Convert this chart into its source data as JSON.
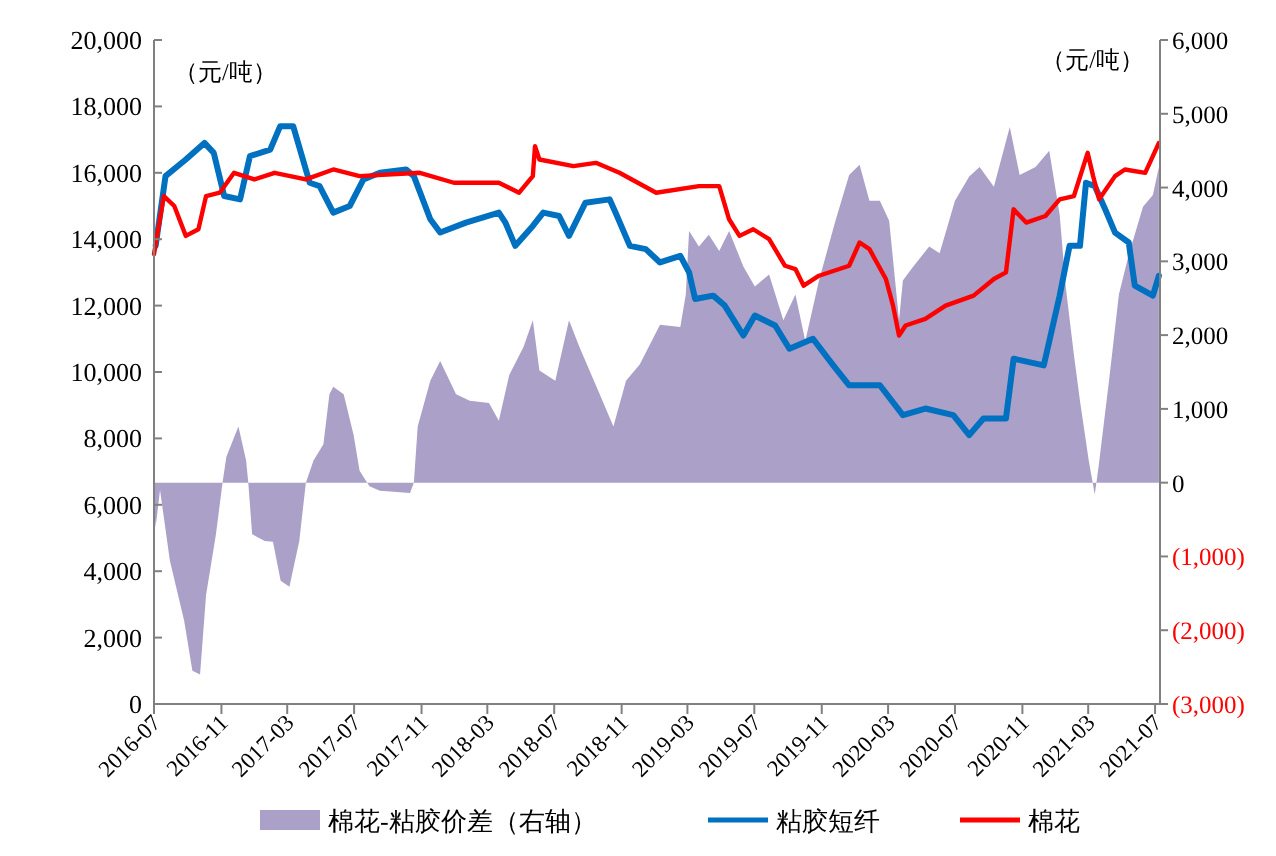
{
  "chart_data": {
    "type": "line",
    "ylabel": "（元/吨）",
    "y2label": "（元/吨）",
    "legend": "bottom",
    "xlim": [
      "2016-07-01",
      "2021-07-10"
    ],
    "xticks": [
      "2016-07",
      "2016-11",
      "2017-03",
      "2017-07",
      "2017-11",
      "2018-03",
      "2018-07",
      "2018-11",
      "2019-03",
      "2019-07",
      "2019-11",
      "2020-03",
      "2020-07",
      "2020-11",
      "2021-03",
      "2021-07"
    ],
    "ylim": [
      0,
      20000
    ],
    "yticks": [
      0,
      {
        "value": 2000,
        "label": "2,000"
      },
      {
        "value": 4000,
        "label": "4,000"
      },
      {
        "value": 6000,
        "label": "6,000"
      },
      {
        "value": 8000,
        "label": "8,000"
      },
      {
        "value": 10000,
        "label": "10,000"
      },
      {
        "value": 12000,
        "label": "12,000"
      },
      {
        "value": 14000,
        "label": "14,000"
      },
      {
        "value": 16000,
        "label": "16,000"
      },
      {
        "value": 18000,
        "label": "18,000"
      },
      {
        "value": 20000,
        "label": "20,000"
      }
    ],
    "y2lim": [
      -3000,
      6000
    ],
    "y2ticks": [
      {
        "value": -3000,
        "label": "(3,000)"
      },
      {
        "value": -2000,
        "label": "(2,000)"
      },
      {
        "value": -1000,
        "label": "(1,000)"
      },
      0,
      {
        "value": 1000,
        "label": "1,000"
      },
      {
        "value": 2000,
        "label": "2,000"
      },
      {
        "value": 3000,
        "label": "3,000"
      },
      {
        "value": 4000,
        "label": "4,000"
      },
      {
        "value": 5000,
        "label": "5,000"
      },
      {
        "value": 6000,
        "label": "6,000"
      }
    ],
    "series": [
      {
        "name": "棉花-粘胶价差（右轴）",
        "type": "area",
        "axis": "y2",
        "color": "#aaa0c8",
        "x": [
          "2016-07-01",
          "2016-07-04",
          "2016-07-12",
          "2016-07-30",
          "2016-08-25",
          "2016-09-09",
          "2016-09-23",
          "2016-10-04",
          "2016-10-22",
          "2016-11-03",
          "2016-11-10",
          "2016-12-02",
          "2016-12-16",
          "2016-12-20",
          "2016-12-27",
          "2017-01-19",
          "2017-02-03",
          "2017-02-17",
          "2017-03-05",
          "2017-03-23",
          "2017-04-04",
          "2017-04-18",
          "2017-05-06",
          "2017-05-17",
          "2017-05-24",
          "2017-06-12",
          "2017-06-30",
          "2017-07-11",
          "2017-07-29",
          "2017-08-17",
          "2017-09-23",
          "2017-10-11",
          "2017-10-18",
          "2017-10-25",
          "2017-11-17",
          "2017-12-05",
          "2018-01-03",
          "2018-01-28",
          "2018-03-04",
          "2018-03-22",
          "2018-04-10",
          "2018-05-06",
          "2018-05-23",
          "2018-06-04",
          "2018-07-03",
          "2018-07-28",
          "2018-08-16",
          "2018-09-22",
          "2018-10-17",
          "2018-11-09",
          "2018-12-04",
          "2019-01-10",
          "2019-02-16",
          "2019-02-26",
          "2019-03-04",
          "2019-03-22",
          "2019-04-09",
          "2019-04-28",
          "2019-05-16",
          "2019-06-11",
          "2019-07-02",
          "2019-07-28",
          "2019-08-23",
          "2019-09-14",
          "2019-10-02",
          "2019-10-27",
          "2019-11-26",
          "2019-12-21",
          "2020-01-09",
          "2020-01-27",
          "2020-02-15",
          "2020-03-03",
          "2020-03-21",
          "2020-03-28",
          "2020-04-16",
          "2020-05-15",
          "2020-06-03",
          "2020-07-01",
          "2020-07-27",
          "2020-08-15",
          "2020-09-10",
          "2020-10-09",
          "2020-10-27",
          "2020-11-25",
          "2020-12-20",
          "2021-01-08",
          "2021-01-19",
          "2021-02-03",
          "2021-02-14",
          "2021-03-02",
          "2021-03-13",
          "2021-03-20",
          "2021-04-08",
          "2021-04-26",
          "2021-05-14",
          "2021-06-09",
          "2021-06-27",
          "2021-07-08"
        ],
        "values": [
          -300,
          -600,
          -100,
          -1060,
          -1870,
          -2550,
          -2600,
          -1520,
          -700,
          0,
          350,
          760,
          300,
          0,
          -700,
          -790,
          -800,
          -1330,
          -1410,
          -790,
          0,
          300,
          520,
          1200,
          1300,
          1200,
          650,
          160,
          -50,
          -110,
          -130,
          -140,
          0,
          760,
          1380,
          1650,
          1200,
          1110,
          1080,
          840,
          1460,
          1840,
          2200,
          1520,
          1380,
          2200,
          1840,
          1200,
          760,
          1380,
          1600,
          2140,
          2110,
          2550,
          3410,
          3200,
          3360,
          3140,
          3410,
          2930,
          2660,
          2820,
          2200,
          2550,
          1920,
          2740,
          3550,
          4170,
          4310,
          3820,
          3820,
          3550,
          2200,
          2740,
          2930,
          3200,
          3110,
          3820,
          4150,
          4280,
          4010,
          4820,
          4170,
          4280,
          4500,
          3630,
          2660,
          1730,
          1110,
          300,
          -160,
          220,
          1380,
          2550,
          3090,
          3740,
          3900,
          4280
        ]
      },
      {
        "name": "粘胶短纤",
        "type": "line",
        "color": "#0070c0",
        "x": [
          "2016-07-04",
          "2016-07-22",
          "2016-08-28",
          "2016-10-01",
          "2016-10-18",
          "2016-11-06",
          "2016-12-05",
          "2016-12-23",
          "2017-01-29",
          "2017-02-16",
          "2017-03-12",
          "2017-04-11",
          "2017-04-29",
          "2017-05-24",
          "2017-06-23",
          "2017-07-18",
          "2017-08-17",
          "2017-10-04",
          "2017-10-18",
          "2017-11-17",
          "2017-12-05",
          "2018-01-21",
          "2018-03-22",
          "2018-04-03",
          "2018-04-21",
          "2018-05-23",
          "2018-06-11",
          "2018-07-10",
          "2018-07-28",
          "2018-08-27",
          "2018-10-10",
          "2018-10-21",
          "2018-11-16",
          "2018-12-15",
          "2019-01-10",
          "2019-02-16",
          "2019-03-04",
          "2019-03-15",
          "2019-04-17",
          "2019-05-08",
          "2019-06-11",
          "2019-07-02",
          "2019-08-08",
          "2019-09-03",
          "2019-10-16",
          "2019-11-22",
          "2019-12-21",
          "2020-01-20",
          "2020-02-15",
          "2020-03-28",
          "2020-05-08",
          "2020-06-28",
          "2020-07-27",
          "2020-08-22",
          "2020-10-02",
          "2020-10-16",
          "2020-12-10",
          "2021-01-08",
          "2021-01-26",
          "2021-02-14",
          "2021-02-25",
          "2021-03-13",
          "2021-04-01",
          "2021-04-19",
          "2021-05-14",
          "2021-05-25",
          "2021-06-27",
          "2021-07-08"
        ],
        "values": [
          13800,
          15900,
          16400,
          16900,
          16600,
          15300,
          15200,
          16500,
          16700,
          17400,
          17400,
          15700,
          15600,
          14800,
          15000,
          15800,
          16000,
          16100,
          15900,
          14600,
          14200,
          14500,
          14800,
          14500,
          13800,
          14400,
          14800,
          14700,
          14100,
          15100,
          15200,
          14800,
          13800,
          13700,
          13300,
          13500,
          13000,
          12200,
          12300,
          12000,
          11100,
          11700,
          11400,
          10700,
          11000,
          10200,
          9600,
          9600,
          9600,
          8700,
          8900,
          8700,
          8100,
          8600,
          8600,
          10400,
          10200,
          12300,
          13800,
          13800,
          15700,
          15600,
          14900,
          14200,
          13900,
          12600,
          12300,
          12900
        ]
      },
      {
        "name": "棉花",
        "type": "line",
        "color": "#ff0000",
        "x": [
          "2016-07-01",
          "2016-07-19",
          "2016-08-07",
          "2016-08-28",
          "2016-09-20",
          "2016-10-04",
          "2016-10-29",
          "2016-11-24",
          "2016-12-31",
          "2017-02-06",
          "2017-04-04",
          "2017-05-24",
          "2017-07-11",
          "2017-10-29",
          "2017-12-30",
          "2018-03-22",
          "2018-04-28",
          "2018-05-23",
          "2018-05-27",
          "2018-06-04",
          "2018-08-05",
          "2018-09-15",
          "2018-10-28",
          "2019-01-03",
          "2019-03-22",
          "2019-04-28",
          "2019-05-16",
          "2019-06-04",
          "2019-06-29",
          "2019-07-28",
          "2019-08-26",
          "2019-09-14",
          "2019-09-29",
          "2019-10-27",
          "2019-12-21",
          "2020-01-09",
          "2020-01-27",
          "2020-02-26",
          "2020-03-10",
          "2020-03-21",
          "2020-04-02",
          "2020-05-08",
          "2020-06-14",
          "2020-08-04",
          "2020-09-10",
          "2020-10-02",
          "2020-10-16",
          "2020-11-08",
          "2020-12-13",
          "2021-01-08",
          "2021-02-03",
          "2021-02-28",
          "2021-03-10",
          "2021-03-21",
          "2021-04-19",
          "2021-05-07",
          "2021-06-13",
          "2021-07-08"
        ],
        "values": [
          13550,
          15300,
          15000,
          14100,
          14300,
          15300,
          15400,
          16000,
          15800,
          16000,
          15800,
          16100,
          15900,
          16000,
          15700,
          15700,
          15400,
          15900,
          16800,
          16400,
          16200,
          16300,
          16000,
          15400,
          15600,
          15600,
          14600,
          14100,
          14300,
          14000,
          13200,
          13100,
          12600,
          12900,
          13200,
          13900,
          13700,
          12800,
          12000,
          11100,
          11400,
          11600,
          12000,
          12300,
          12800,
          13000,
          14900,
          14500,
          14700,
          15200,
          15300,
          16600,
          15900,
          15200,
          15900,
          16100,
          16000,
          16900
        ]
      }
    ]
  }
}
